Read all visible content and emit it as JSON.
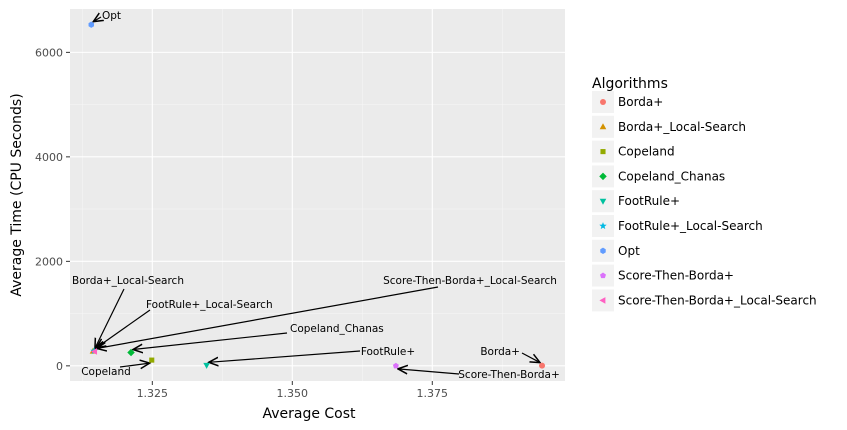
{
  "chart_data": {
    "type": "scatter",
    "xlabel": "Average Cost",
    "ylabel": "Average Time (CPU Seconds)",
    "xlim": [
      1.3103,
      1.3987
    ],
    "ylim": [
      -290,
      6830
    ],
    "x_ticks": [
      1.325,
      1.35,
      1.375
    ],
    "x_tick_labels": [
      "1.325",
      "1.350",
      "1.375"
    ],
    "y_ticks": [
      0,
      2000,
      4000,
      6000
    ],
    "y_tick_labels": [
      "0",
      "2000",
      "4000",
      "6000"
    ],
    "grid": true,
    "legend": {
      "title": "Algorithms",
      "placement": "right"
    },
    "series": [
      {
        "name": "Borda+",
        "x": 1.3946,
        "y": 5,
        "color": "#F8766D",
        "shape": "circle",
        "annotation": "Borda+"
      },
      {
        "name": "Borda+_Local-Search",
        "x": 1.3144,
        "y": 280,
        "color": "#D39200",
        "shape": "triangle-up",
        "annotation": "Borda+_Local-Search"
      },
      {
        "name": "Copeland",
        "x": 1.3249,
        "y": 110,
        "color": "#93AA00",
        "shape": "square",
        "annotation": "Copeland"
      },
      {
        "name": "Copeland_Chanas",
        "x": 1.3212,
        "y": 255,
        "color": "#00BA38",
        "shape": "diamond",
        "annotation": "Copeland_Chanas"
      },
      {
        "name": "FootRule+",
        "x": 1.3347,
        "y": 10,
        "color": "#00C19F",
        "shape": "triangle-down",
        "annotation": "FootRule+"
      },
      {
        "name": "FootRule+_Local-Search",
        "x": 1.3146,
        "y": 285,
        "color": "#00B9E3",
        "shape": "star",
        "annotation": "FootRule+_Local-Search"
      },
      {
        "name": "Opt",
        "x": 1.3141,
        "y": 6530,
        "color": "#619CFF",
        "shape": "hexagon",
        "annotation": "Opt"
      },
      {
        "name": "Score-Then-Borda+",
        "x": 1.3685,
        "y": 0,
        "color": "#DB72FB",
        "shape": "pentagon",
        "annotation": "Score-Then-Borda+"
      },
      {
        "name": "Score-Then-Borda+_Local-Search",
        "x": 1.3147,
        "y": 275,
        "color": "#FF61C3",
        "shape": "triangle-left",
        "annotation": "Score-Then-Borda+_Local-Search"
      }
    ]
  }
}
